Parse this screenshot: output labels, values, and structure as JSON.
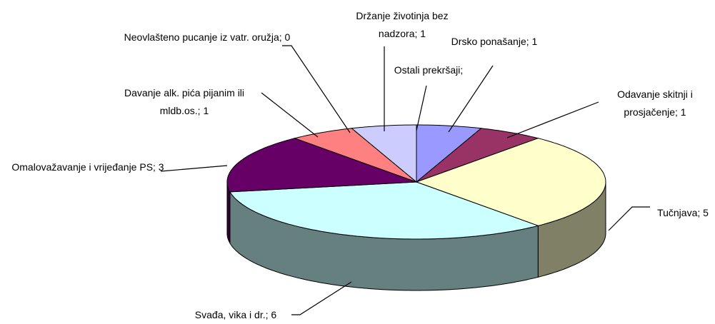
{
  "chart_data": {
    "type": "pie3d",
    "labels": [
      "Ostali prekršaji;",
      "Drsko ponašanje; 1",
      "Odavanje skitnji i prosjačenje; 1",
      "Tučnjava; 5",
      "Svađa, vika i dr.; 6",
      "Omalovažavanje i vrijeđanje PS; 3",
      "Davanje alk. pića pijanim ili mldb.os.; 1",
      "Neovlašteno pucanje iz vatr. oružja; 0",
      "Držanje životinja bez nadzora; 1"
    ],
    "values": [
      0,
      1,
      1,
      5,
      6,
      3,
      1,
      0,
      1
    ],
    "colors": [
      "#ffffff",
      "#9999ff",
      "#993366",
      "#ffffcc",
      "#ccffff",
      "#660066",
      "#ff8080",
      "#ffffff",
      "#ccccff"
    ],
    "side_colors": [
      "#808080",
      "#666699",
      "#4d1933",
      "#808066",
      "#668080",
      "#330033",
      "#804040",
      "#808080",
      "#666680"
    ]
  }
}
